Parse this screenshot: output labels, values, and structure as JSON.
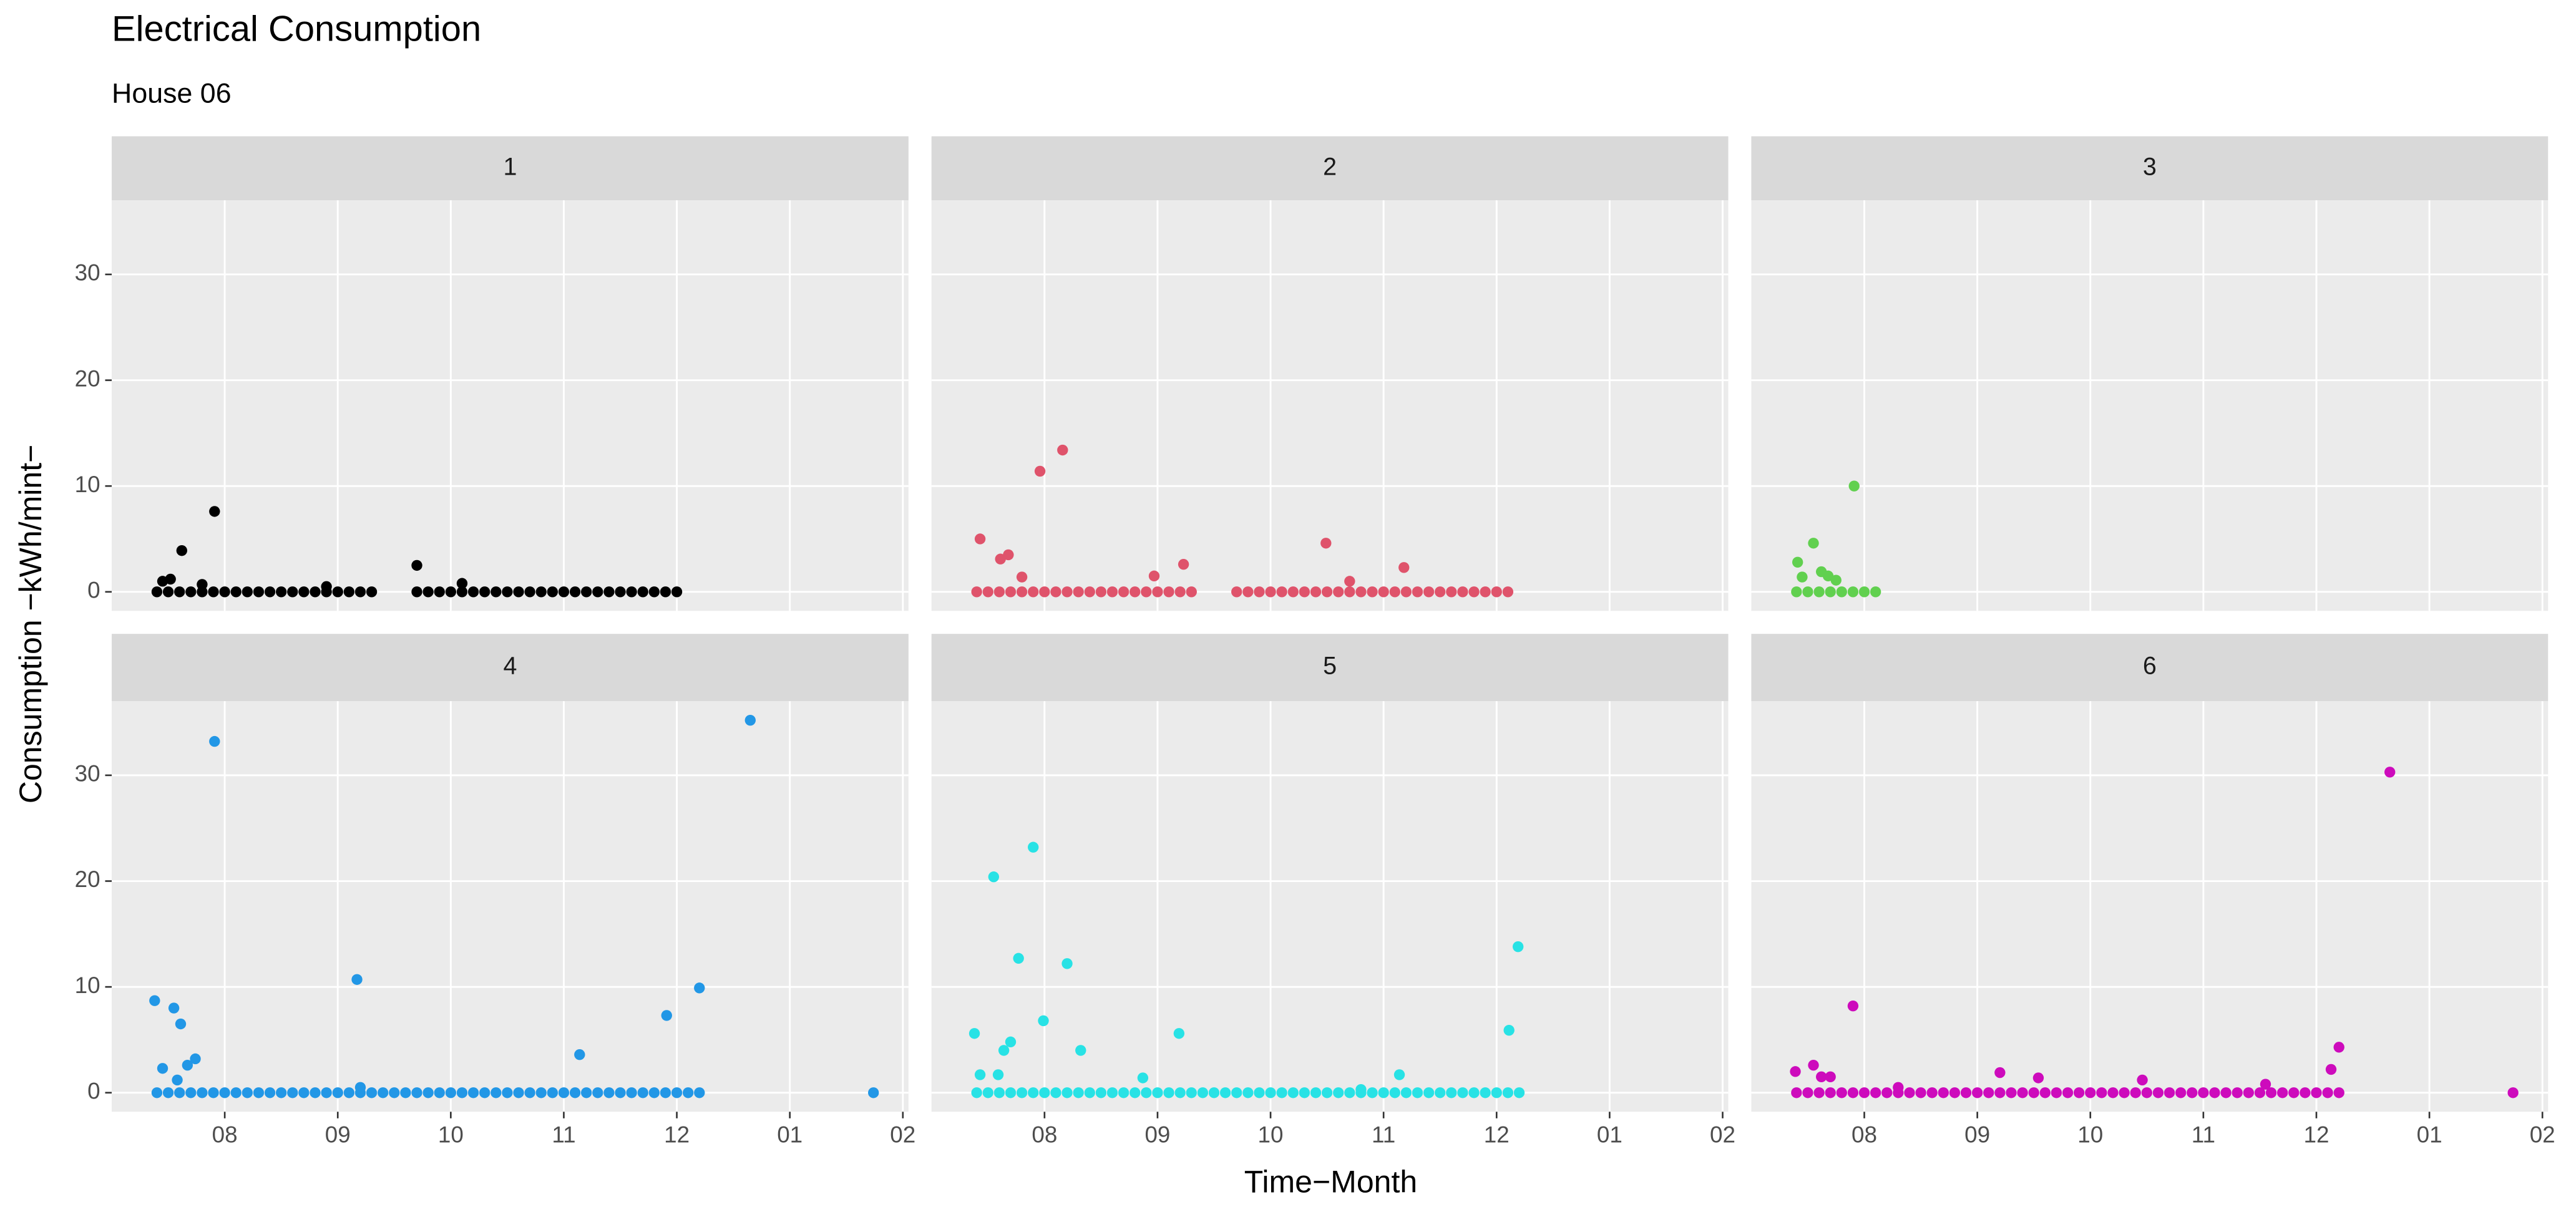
{
  "chart_data": {
    "type": "scatter",
    "title": "Electrical Consumption",
    "subtitle": "House 06",
    "x_label": "Time−Month",
    "y_label": "Consumption −kWh/mint−",
    "xlim": [
      7.0,
      14.05
    ],
    "xticks": [
      {
        "value": 8,
        "label": "08"
      },
      {
        "value": 9,
        "label": "09"
      },
      10,
      11,
      12,
      {
        "value": 13,
        "label": "01"
      },
      {
        "value": 14,
        "label": "02"
      }
    ],
    "ylim": [
      -1.8,
      37
    ],
    "yticks": [
      0,
      10,
      20,
      30
    ],
    "grid": true,
    "panels": [
      {
        "name": "1",
        "color": "#000000",
        "x": [
          7.4,
          7.5,
          7.6,
          7.7,
          7.8,
          7.9,
          8,
          8.1,
          8.2,
          8.3,
          8.4,
          8.5,
          8.6,
          8.7,
          8.8,
          8.9,
          9,
          9.1,
          9.2,
          9.3,
          9.7,
          9.8,
          9.9,
          10,
          10.1,
          10.2,
          10.3,
          10.4,
          10.5,
          10.6,
          10.7,
          10.8,
          10.9,
          11,
          11.1,
          11.2,
          11.3,
          11.4,
          11.5,
          11.6,
          11.7,
          11.8,
          11.9,
          12,
          7.45,
          7.52,
          7.62,
          7.91,
          9.7,
          7.8,
          10.1,
          8.9
        ],
        "y": [
          0,
          0,
          0,
          0,
          0,
          0,
          0,
          0,
          0,
          0,
          0,
          0,
          0,
          0,
          0,
          0,
          0,
          0,
          0,
          0,
          0,
          0,
          0,
          0,
          0,
          0,
          0,
          0,
          0,
          0,
          0,
          0,
          0,
          0,
          0,
          0,
          0,
          0,
          0,
          0,
          0,
          0,
          0,
          0,
          1.0,
          1.2,
          3.9,
          7.6,
          2.5,
          0.7,
          0.8,
          0.5
        ]
      },
      {
        "name": "2",
        "color": "#DF536B",
        "x": [
          7.4,
          7.5,
          7.6,
          7.7,
          7.8,
          7.9,
          8,
          8.1,
          8.2,
          8.3,
          8.4,
          8.5,
          8.6,
          8.7,
          8.8,
          8.9,
          9,
          9.1,
          9.2,
          9.3,
          9.7,
          9.8,
          9.9,
          10,
          10.1,
          10.2,
          10.3,
          10.4,
          10.5,
          10.6,
          10.7,
          10.8,
          10.9,
          11,
          11.1,
          11.2,
          11.3,
          11.4,
          11.5,
          11.6,
          11.7,
          11.8,
          11.9,
          12,
          12.1,
          7.43,
          7.61,
          7.68,
          7.8,
          7.96,
          8.16,
          8.97,
          9.23,
          10.49,
          11.18,
          10.7
        ],
        "y": [
          0,
          0,
          0,
          0,
          0,
          0,
          0,
          0,
          0,
          0,
          0,
          0,
          0,
          0,
          0,
          0,
          0,
          0,
          0,
          0,
          0,
          0,
          0,
          0,
          0,
          0,
          0,
          0,
          0,
          0,
          0,
          0,
          0,
          0,
          0,
          0,
          0,
          0,
          0,
          0,
          0,
          0,
          0,
          0,
          0,
          5.0,
          3.1,
          3.5,
          1.4,
          11.4,
          13.4,
          1.5,
          2.6,
          4.6,
          2.3,
          1.0
        ]
      },
      {
        "name": "3",
        "color": "#61D04F",
        "x": [
          7.4,
          7.5,
          7.6,
          7.7,
          7.8,
          7.9,
          8,
          8.1,
          7.41,
          7.45,
          7.55,
          7.62,
          7.68,
          7.75,
          7.91
        ],
        "y": [
          0,
          0,
          0,
          0,
          0,
          0,
          0,
          0,
          2.8,
          1.4,
          4.6,
          1.9,
          1.5,
          1.1,
          10.0
        ]
      },
      {
        "name": "4",
        "color": "#2297E6",
        "x": [
          7.4,
          7.5,
          7.6,
          7.7,
          7.8,
          7.9,
          8,
          8.1,
          8.2,
          8.3,
          8.4,
          8.5,
          8.6,
          8.7,
          8.8,
          8.9,
          9,
          9.1,
          9.2,
          9.3,
          9.4,
          9.5,
          9.6,
          9.7,
          9.8,
          9.9,
          10,
          10.1,
          10.2,
          10.3,
          10.4,
          10.5,
          10.6,
          10.7,
          10.8,
          10.9,
          11,
          11.1,
          11.2,
          11.3,
          11.4,
          11.5,
          11.6,
          11.7,
          11.8,
          11.9,
          12,
          12.1,
          12.2,
          7.38,
          7.45,
          7.55,
          7.61,
          7.67,
          7.74,
          7.58,
          7.91,
          9.17,
          11.14,
          11.91,
          12.2,
          12.65,
          13.74,
          9.2
        ],
        "y": [
          0,
          0,
          0,
          0,
          0,
          0,
          0,
          0,
          0,
          0,
          0,
          0,
          0,
          0,
          0,
          0,
          0,
          0,
          0,
          0,
          0,
          0,
          0,
          0,
          0,
          0,
          0,
          0,
          0,
          0,
          0,
          0,
          0,
          0,
          0,
          0,
          0,
          0,
          0,
          0,
          0,
          0,
          0,
          0,
          0,
          0,
          0,
          0,
          0,
          8.7,
          2.3,
          8.0,
          6.5,
          2.6,
          3.2,
          1.2,
          33.2,
          10.7,
          3.6,
          7.3,
          9.9,
          35.2,
          0,
          0.5
        ]
      },
      {
        "name": "5",
        "color": "#28E2E5",
        "x": [
          7.4,
          7.5,
          7.6,
          7.7,
          7.8,
          7.9,
          8,
          8.1,
          8.2,
          8.3,
          8.4,
          8.5,
          8.6,
          8.7,
          8.8,
          8.9,
          9,
          9.1,
          9.2,
          9.3,
          9.4,
          9.5,
          9.6,
          9.7,
          9.8,
          9.9,
          10,
          10.1,
          10.2,
          10.3,
          10.4,
          10.5,
          10.6,
          10.7,
          10.8,
          10.9,
          11,
          11.1,
          11.2,
          11.3,
          11.4,
          11.5,
          11.6,
          11.7,
          11.8,
          11.9,
          12,
          12.1,
          12.2,
          7.38,
          7.43,
          7.55,
          7.59,
          7.64,
          7.7,
          7.77,
          7.9,
          7.99,
          8.2,
          8.32,
          8.87,
          9.19,
          11.14,
          12.11,
          12.19,
          10.8
        ],
        "y": [
          0,
          0,
          0,
          0,
          0,
          0,
          0,
          0,
          0,
          0,
          0,
          0,
          0,
          0,
          0,
          0,
          0,
          0,
          0,
          0,
          0,
          0,
          0,
          0,
          0,
          0,
          0,
          0,
          0,
          0,
          0,
          0,
          0,
          0,
          0,
          0,
          0,
          0,
          0,
          0,
          0,
          0,
          0,
          0,
          0,
          0,
          0,
          0,
          0,
          5.6,
          1.7,
          20.4,
          1.7,
          4.0,
          4.8,
          12.7,
          23.2,
          6.8,
          12.2,
          4.0,
          1.4,
          5.6,
          1.7,
          5.9,
          13.8,
          0.3
        ]
      },
      {
        "name": "6",
        "color": "#CD0BBC",
        "x": [
          7.4,
          7.5,
          7.6,
          7.7,
          7.8,
          7.9,
          8,
          8.1,
          8.2,
          8.3,
          8.4,
          8.5,
          8.6,
          8.7,
          8.8,
          8.9,
          9,
          9.1,
          9.2,
          9.3,
          9.4,
          9.5,
          9.6,
          9.7,
          9.8,
          9.9,
          10,
          10.1,
          10.2,
          10.3,
          10.4,
          10.5,
          10.6,
          10.7,
          10.8,
          10.9,
          11,
          11.1,
          11.2,
          11.3,
          11.4,
          11.5,
          11.6,
          11.7,
          11.8,
          11.9,
          12,
          12.1,
          12.2,
          7.39,
          7.55,
          7.62,
          7.7,
          7.9,
          9.2,
          9.54,
          10.46,
          11.55,
          12.13,
          12.2,
          12.65,
          13.74,
          8.3
        ],
        "y": [
          0,
          0,
          0,
          0,
          0,
          0,
          0,
          0,
          0,
          0,
          0,
          0,
          0,
          0,
          0,
          0,
          0,
          0,
          0,
          0,
          0,
          0,
          0,
          0,
          0,
          0,
          0,
          0,
          0,
          0,
          0,
          0,
          0,
          0,
          0,
          0,
          0,
          0,
          0,
          0,
          0,
          0,
          0,
          0,
          0,
          0,
          0,
          0,
          0,
          2.0,
          2.6,
          1.5,
          1.5,
          8.2,
          1.9,
          1.4,
          1.2,
          0.8,
          2.2,
          4.3,
          30.3,
          0,
          0.5
        ]
      }
    ]
  }
}
